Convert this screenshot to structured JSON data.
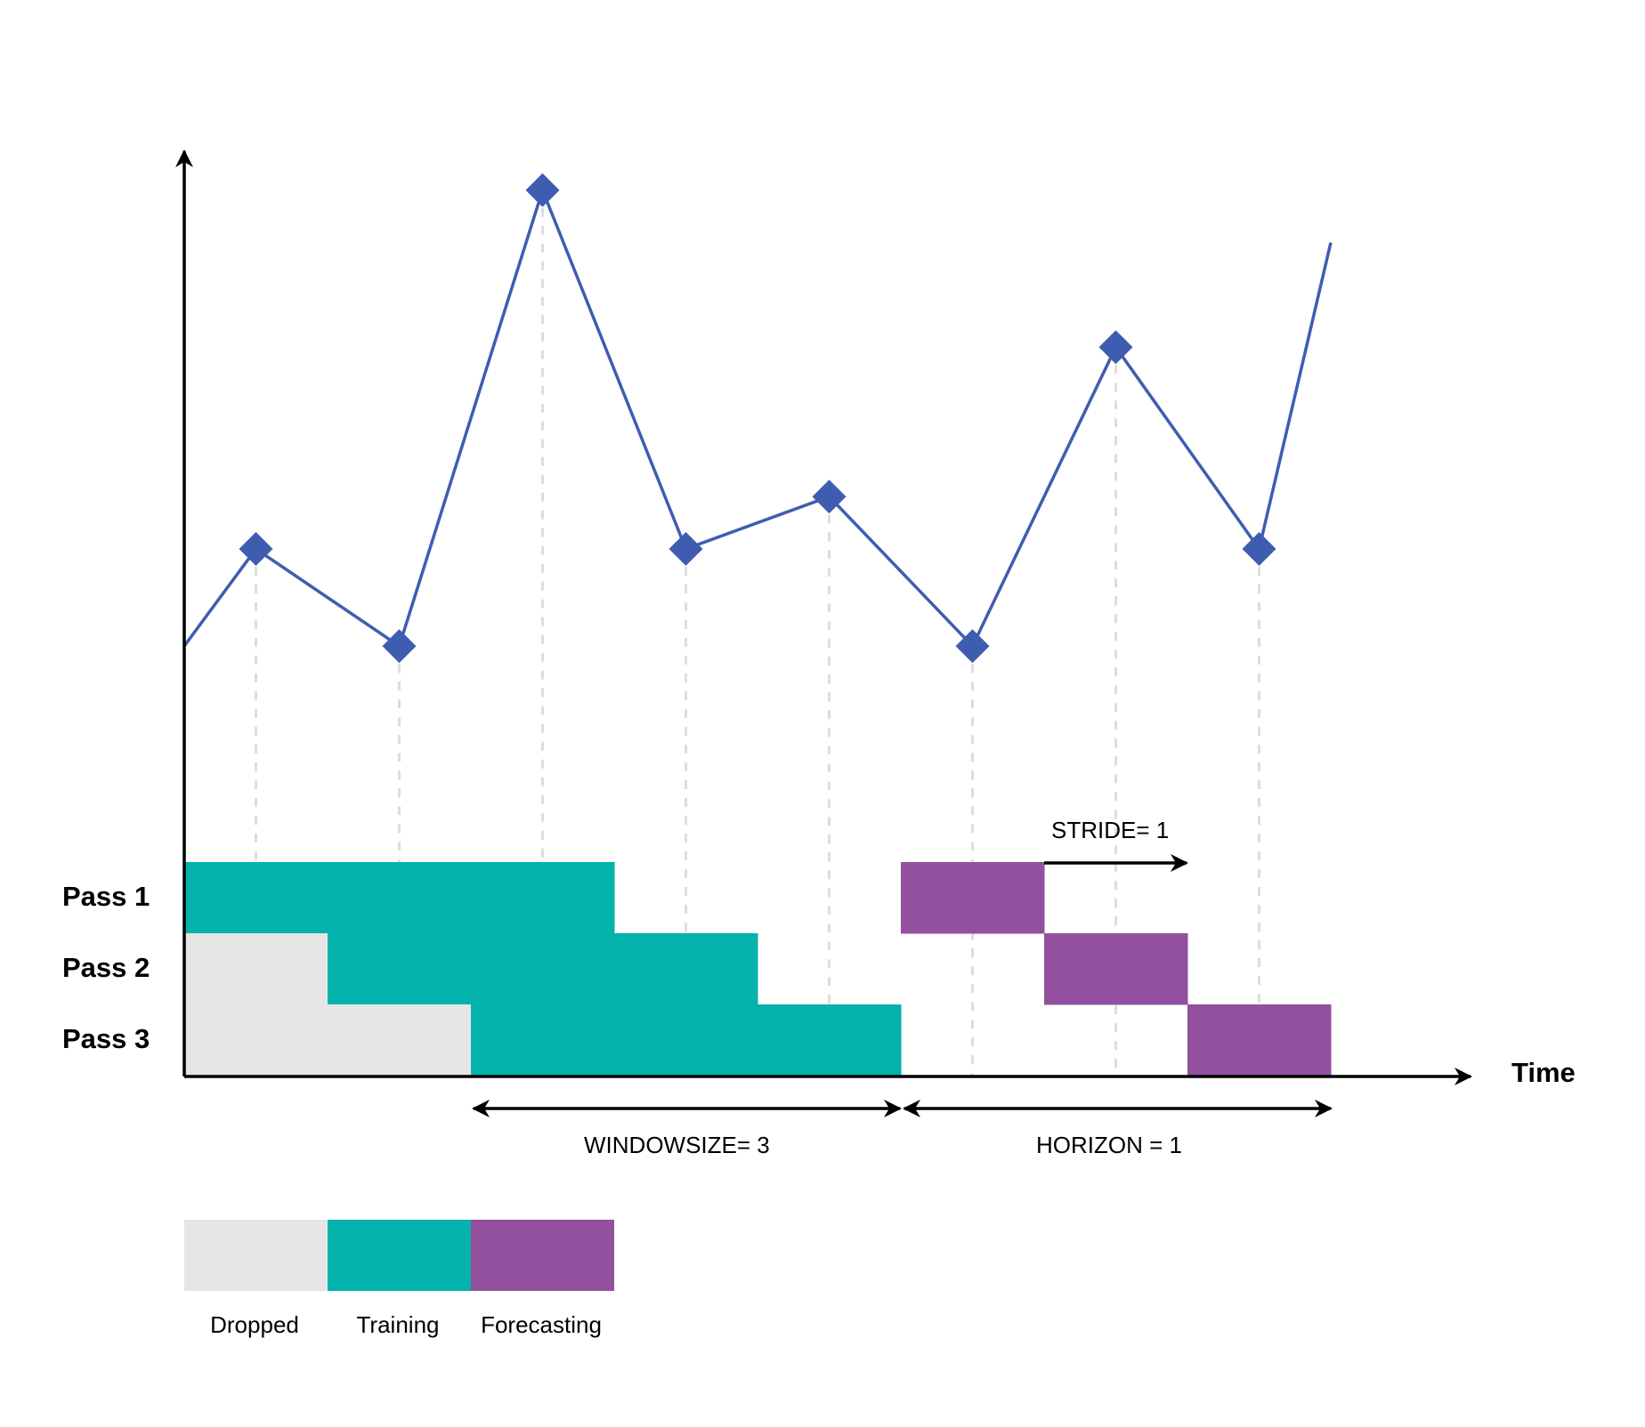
{
  "colors": {
    "dropped": "#e5e5e5",
    "training": "#02b2ab",
    "forecasting": "#92509e",
    "series": "#3f5db0",
    "guide": "#dddddd",
    "axis": "#000000"
  },
  "axis": {
    "x_label": "Time"
  },
  "passes": [
    {
      "label": "Pass 1",
      "cells": [
        "training",
        "training",
        "training",
        "empty",
        "empty",
        "forecasting",
        "empty",
        "empty"
      ]
    },
    {
      "label": "Pass 2",
      "cells": [
        "dropped",
        "training",
        "training",
        "training",
        "empty",
        "empty",
        "forecasting",
        "empty"
      ]
    },
    {
      "label": "Pass 3",
      "cells": [
        "dropped",
        "dropped",
        "training",
        "training",
        "training",
        "empty",
        "empty",
        "forecasting"
      ]
    }
  ],
  "series": {
    "start_value": 0.32,
    "values": [
      0.45,
      0.32,
      0.93,
      0.45,
      0.52,
      0.32,
      0.72,
      0.45
    ],
    "end_value": 0.86
  },
  "annotations": {
    "stride": "STRIDE= 1",
    "window_size": "WINDOWSIZE= 3",
    "horizon": "HORIZON = 1"
  },
  "legend": [
    {
      "key": "dropped",
      "label": "Dropped"
    },
    {
      "key": "training",
      "label": "Training"
    },
    {
      "key": "forecasting",
      "label": "Forecasting"
    }
  ]
}
